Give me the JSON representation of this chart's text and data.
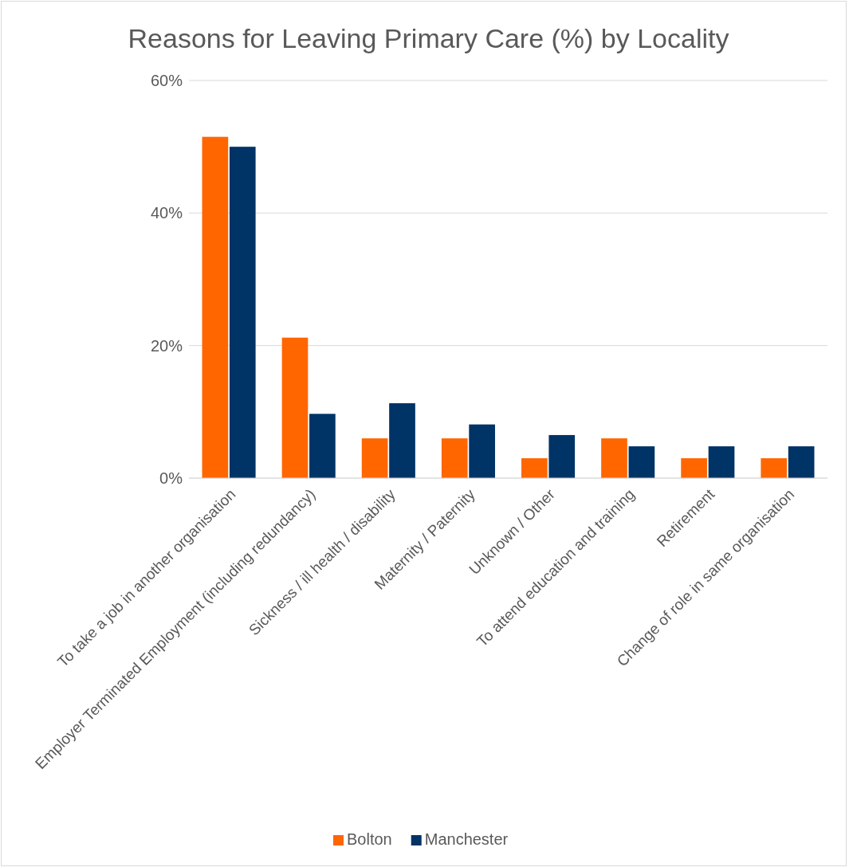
{
  "chart_data": {
    "type": "bar",
    "title": "Reasons for Leaving Primary Care (%) by Locality",
    "categories": [
      "To take a job in another organisation",
      "Employer Terminated Employment (including redundancy)",
      "Sickness / ill health / disability",
      "Maternity / Paternity",
      "Unknown / Other",
      "To attend education and training",
      "Retirement",
      "Change of role in same organisation"
    ],
    "series": [
      {
        "name": "Bolton",
        "color": "#ff6600",
        "values": [
          51.5,
          21.2,
          6,
          6,
          3,
          6,
          3,
          3
        ]
      },
      {
        "name": "Manchester",
        "color": "#003366",
        "values": [
          50,
          9.7,
          11.3,
          8.1,
          6.5,
          4.8,
          4.8,
          4.8
        ]
      }
    ],
    "ylim": [
      0,
      60
    ],
    "yticks": [
      {
        "value": 0,
        "label": "0%"
      },
      {
        "value": 20,
        "label": "20%"
      },
      {
        "value": 40,
        "label": "40%"
      },
      {
        "value": 60,
        "label": "60%"
      }
    ],
    "grid": "y",
    "legend": "bottom"
  }
}
